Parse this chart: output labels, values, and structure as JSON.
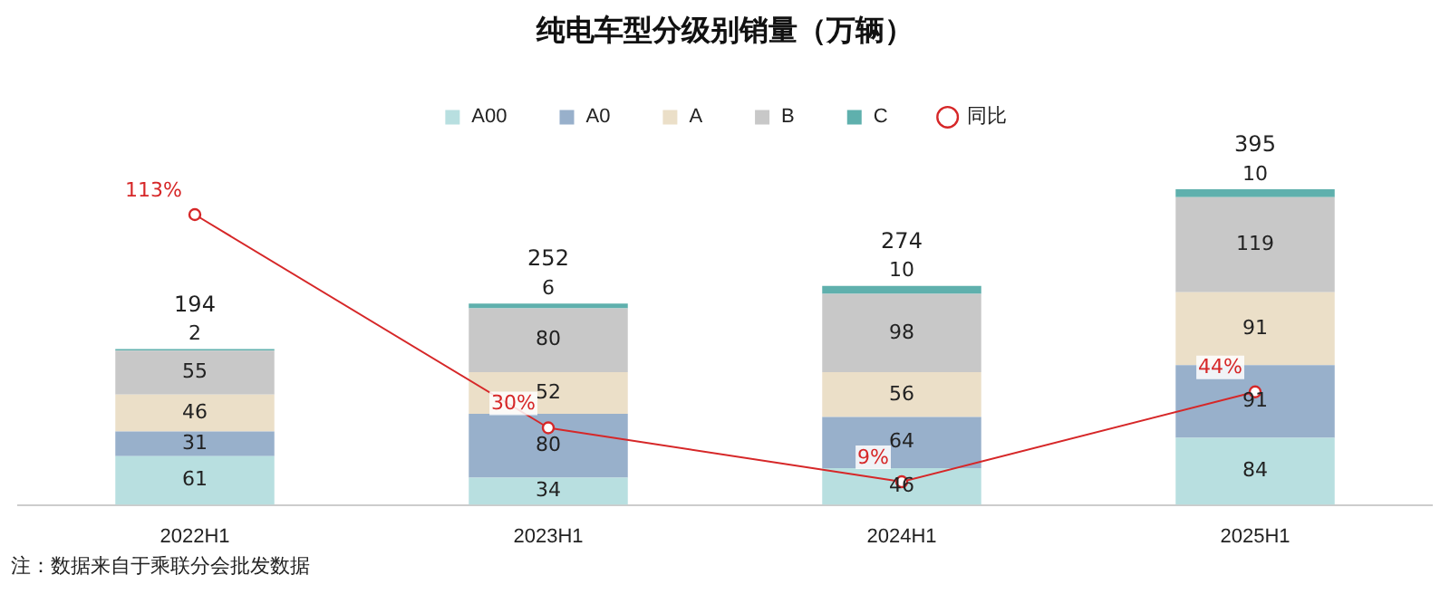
{
  "chart_data": {
    "type": "bar",
    "title": "纯电车型分级别销量（万辆）",
    "categories": [
      "2022H1",
      "2023H1",
      "2024H1",
      "2025H1"
    ],
    "stacked": true,
    "legend": "top",
    "data_labels": true,
    "tick_labels": "x",
    "grid": false,
    "series": [
      {
        "name": "A00",
        "color": "#b8dfe0",
        "values": [
          61,
          34,
          46,
          84
        ]
      },
      {
        "name": "A0",
        "color": "#98b0cb",
        "values": [
          31,
          80,
          64,
          91
        ]
      },
      {
        "name": "A",
        "color": "#ebdfc8",
        "values": [
          46,
          52,
          56,
          91
        ]
      },
      {
        "name": "B",
        "color": "#c8c8c8",
        "values": [
          55,
          80,
          98,
          119
        ]
      },
      {
        "name": "C",
        "color": "#5fb0ad",
        "values": [
          2,
          6,
          10,
          10
        ]
      },
      {
        "name": "同比",
        "type": "line",
        "axis": "y2",
        "color": "#d62728",
        "marker": "circle",
        "values": [
          113,
          30,
          9,
          44
        ],
        "value_labels": [
          "113%",
          "30%",
          "9%",
          "44%"
        ]
      }
    ],
    "totals": [
      "194",
      "252",
      "274",
      "395"
    ],
    "annotations": [
      "注：数据来自于乘联分会批发数据"
    ]
  }
}
